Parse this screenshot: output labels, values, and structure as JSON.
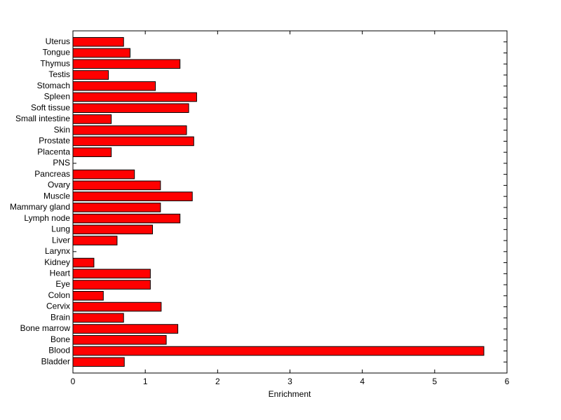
{
  "chart_data": {
    "type": "barh",
    "xlabel": "Enrichment",
    "categories": [
      "Bladder",
      "Blood",
      "Bone",
      "Bone marrow",
      "Brain",
      "Cervix",
      "Colon",
      "Eye",
      "Heart",
      "Kidney",
      "Larynx",
      "Liver",
      "Lung",
      "Lymph node",
      "Mammary gland",
      "Muscle",
      "Ovary",
      "Pancreas",
      "PNS",
      "Placenta",
      "Prostate",
      "Skin",
      "Small intestine",
      "Soft tissue",
      "Spleen",
      "Stomach",
      "Testis",
      "Thymus",
      "Tongue",
      "Uterus"
    ],
    "values": [
      0.71,
      5.68,
      1.29,
      1.45,
      0.7,
      1.22,
      0.42,
      1.07,
      1.07,
      0.29,
      0,
      0.61,
      1.1,
      1.48,
      1.21,
      1.65,
      1.21,
      0.85,
      0,
      0.53,
      1.67,
      1.57,
      0.53,
      1.6,
      1.71,
      1.14,
      0.49,
      1.48,
      0.79,
      0.7
    ],
    "color": "#ff0000",
    "xlim": [
      0,
      6
    ],
    "xticks": [
      0,
      1,
      2,
      3,
      4,
      5,
      6
    ]
  }
}
